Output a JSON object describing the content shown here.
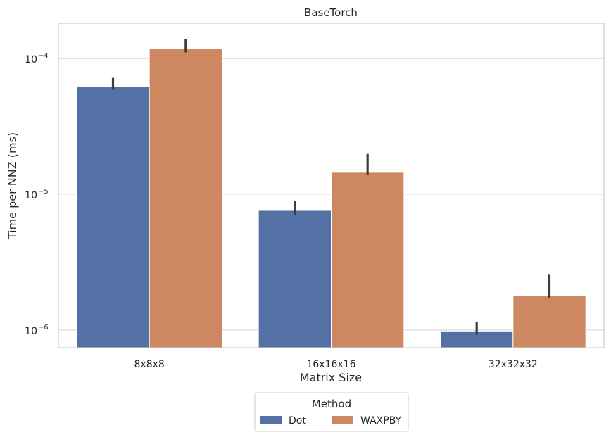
{
  "chart_data": {
    "type": "bar",
    "title": "BaseTorch",
    "xlabel": "Matrix Size",
    "ylabel": "Time per NNZ (ms)",
    "yscale": "log",
    "ylim": [
      7.4e-07,
      0.000182
    ],
    "yticks": [
      {
        "value": 1e-06,
        "label": "10",
        "exp": "−6"
      },
      {
        "value": 1e-05,
        "label": "10",
        "exp": "−5"
      },
      {
        "value": 0.0001,
        "label": "10",
        "exp": "−4"
      }
    ],
    "categories": [
      "8x8x8",
      "16x16x16",
      "32x32x32"
    ],
    "series": [
      {
        "name": "Dot",
        "color": "#5471a5",
        "values": [
          6.2e-05,
          7.6e-06,
          9.7e-07
        ],
        "error_low": [
          5.9e-05,
          7e-06,
          9.2e-07
        ],
        "error_high": [
          7.2e-05,
          8.9e-06,
          1.15e-06
        ]
      },
      {
        "name": "WAXPBY",
        "color": "#cd8861",
        "values": [
          0.000118,
          1.45e-05,
          1.79e-06
        ],
        "error_low": [
          0.000111,
          1.38e-05,
          1.72e-06
        ],
        "error_high": [
          0.000139,
          1.98e-05,
          2.55e-06
        ]
      }
    ],
    "grid": true,
    "legend": {
      "title": "Method",
      "placement": "bottom-center"
    }
  }
}
